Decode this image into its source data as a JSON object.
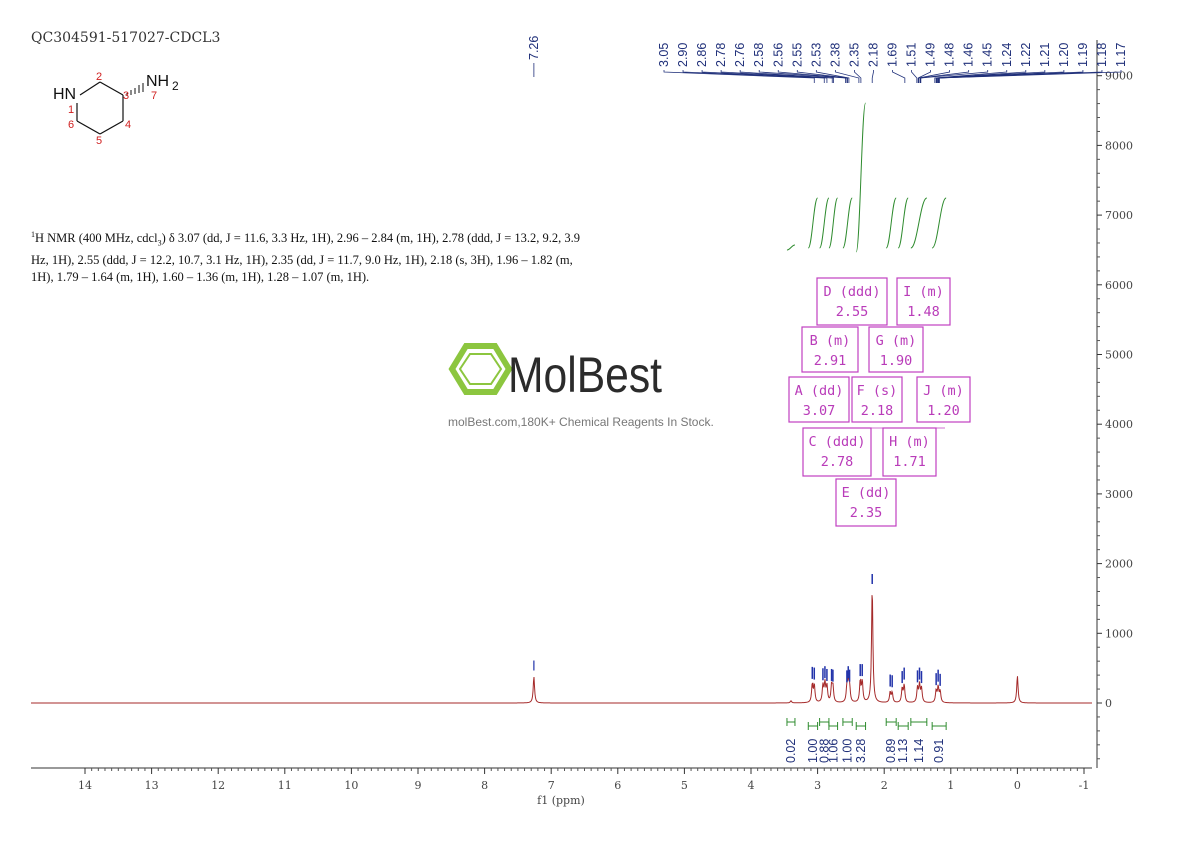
{
  "sample_id": "QC304591-517027-CDCL3",
  "description": {
    "nucleus_sup": "1",
    "text_1": "H NMR (400 MHz, cdcl",
    "solvent_sub": "3",
    "text_2": ") δ 3.07 (dd, J = 11.6, 3.3 Hz, 1H), 2.96 – 2.84 (m, 1H), 2.78 (ddd, J = 13.2, 9.2, 3.9 Hz, 1H), 2.55 (ddd, J = 12.2, 10.7, 3.1 Hz, 1H), 2.35 (dd, J = 11.7, 9.0 Hz, 1H), 2.18 (s, 3H), 1.96 – 1.82 (m, 1H), 1.79 – 1.64 (m, 1H), 1.60 – 1.36 (m, 1H), 1.28 – 1.07 (m, 1H)."
  },
  "molecule": {
    "hn_label": "HN",
    "nh2_label": "NH",
    "nh2_sub": "2",
    "atom_numbers": [
      "1",
      "2",
      "3",
      "4",
      "5",
      "6",
      "7"
    ]
  },
  "watermark": {
    "brand": "MolBest",
    "tagline": "molBest.com,180K+ Chemical Reagents In Stock.",
    "brand_color": "#8cc63f"
  },
  "colors": {
    "spectrum": "#a52a2a",
    "integral": "#2e8b2e",
    "peak_label": "#20307a",
    "multiplet_box": "#c040c0"
  },
  "chart_data": {
    "type": "line",
    "xlabel": "f1 (ppm)",
    "xlim": [
      14.8,
      -1.1
    ],
    "x_ticks": [
      "14",
      "13",
      "12",
      "11",
      "10",
      "9",
      "8",
      "7",
      "6",
      "5",
      "4",
      "3",
      "2",
      "1",
      "0",
      "-1"
    ],
    "y_ticks": [
      "9000",
      "8000",
      "7000",
      "6000",
      "5000",
      "4000",
      "3000",
      "2000",
      "1000",
      "0"
    ],
    "ylim": [
      -1000,
      9500
    ],
    "peaks": [
      {
        "ppm": 7.26,
        "height": 380
      },
      {
        "ppm": 3.4,
        "height": 30
      },
      {
        "ppm": 3.08,
        "height": 260
      },
      {
        "ppm": 3.05,
        "height": 250
      },
      {
        "ppm": 2.92,
        "height": 240
      },
      {
        "ppm": 2.89,
        "height": 270
      },
      {
        "ppm": 2.86,
        "height": 230
      },
      {
        "ppm": 2.79,
        "height": 230
      },
      {
        "ppm": 2.77,
        "height": 220
      },
      {
        "ppm": 2.56,
        "height": 210
      },
      {
        "ppm": 2.54,
        "height": 270
      },
      {
        "ppm": 2.52,
        "height": 220
      },
      {
        "ppm": 2.36,
        "height": 300
      },
      {
        "ppm": 2.33,
        "height": 300
      },
      {
        "ppm": 2.18,
        "height": 1650
      },
      {
        "ppm": 1.91,
        "height": 150
      },
      {
        "ppm": 1.88,
        "height": 140
      },
      {
        "ppm": 1.73,
        "height": 200
      },
      {
        "ppm": 1.7,
        "height": 250
      },
      {
        "ppm": 1.5,
        "height": 210
      },
      {
        "ppm": 1.47,
        "height": 250
      },
      {
        "ppm": 1.44,
        "height": 200
      },
      {
        "ppm": 1.22,
        "height": 170
      },
      {
        "ppm": 1.19,
        "height": 220
      },
      {
        "ppm": 1.16,
        "height": 160
      },
      {
        "ppm": 0.0,
        "height": 390
      }
    ],
    "peak_labels_left": [
      "7.26"
    ],
    "peak_labels": [
      "3.05",
      "2.90",
      "2.86",
      "2.78",
      "2.76",
      "2.58",
      "2.56",
      "2.55",
      "2.53",
      "2.38",
      "2.35",
      "2.18",
      "1.69",
      "1.51",
      "1.49",
      "1.48",
      "1.46",
      "1.45",
      "1.24",
      "1.22",
      "1.21",
      "1.20",
      "1.19",
      "1.18",
      "1.17"
    ],
    "integrals": [
      {
        "from": 3.46,
        "to": 3.34,
        "value": "0.02"
      },
      {
        "from": 3.14,
        "to": 3.0,
        "value": "1.00"
      },
      {
        "from": 2.97,
        "to": 2.83,
        "value": "0.88"
      },
      {
        "from": 2.83,
        "to": 2.7,
        "value": "1.06"
      },
      {
        "from": 2.62,
        "to": 2.48,
        "value": "1.00"
      },
      {
        "from": 2.42,
        "to": 2.28,
        "value": "3.28"
      },
      {
        "from": 1.97,
        "to": 1.82,
        "value": "0.89"
      },
      {
        "from": 1.79,
        "to": 1.64,
        "value": "1.13"
      },
      {
        "from": 1.6,
        "to": 1.36,
        "value": "1.14"
      },
      {
        "from": 1.28,
        "to": 1.07,
        "value": "0.91"
      }
    ],
    "integral_labels": [
      "0.02",
      "1.00",
      "0.88",
      "1.06",
      "1.00",
      "3.28",
      "0.89",
      "1.13",
      "1.14",
      "0.91"
    ],
    "multiplets": [
      {
        "id": "A",
        "type": "dd",
        "ppm": "3.07",
        "label": "A (dd)"
      },
      {
        "id": "B",
        "type": "m",
        "ppm": "2.91",
        "label": "B (m)"
      },
      {
        "id": "C",
        "type": "ddd",
        "ppm": "2.78",
        "label": "C (ddd)"
      },
      {
        "id": "D",
        "type": "ddd",
        "ppm": "2.55",
        "label": "D (ddd)"
      },
      {
        "id": "E",
        "type": "dd",
        "ppm": "2.35",
        "label": "E (dd)"
      },
      {
        "id": "F",
        "type": "s",
        "ppm": "2.18",
        "label": "F (s)"
      },
      {
        "id": "G",
        "type": "m",
        "ppm": "1.90",
        "label": "G (m)"
      },
      {
        "id": "H",
        "type": "m",
        "ppm": "1.71",
        "label": "H (m)"
      },
      {
        "id": "I",
        "type": "m",
        "ppm": "1.48",
        "label": "I (m)"
      },
      {
        "id": "J",
        "type": "m",
        "ppm": "1.20",
        "label": "J (m)"
      }
    ]
  }
}
